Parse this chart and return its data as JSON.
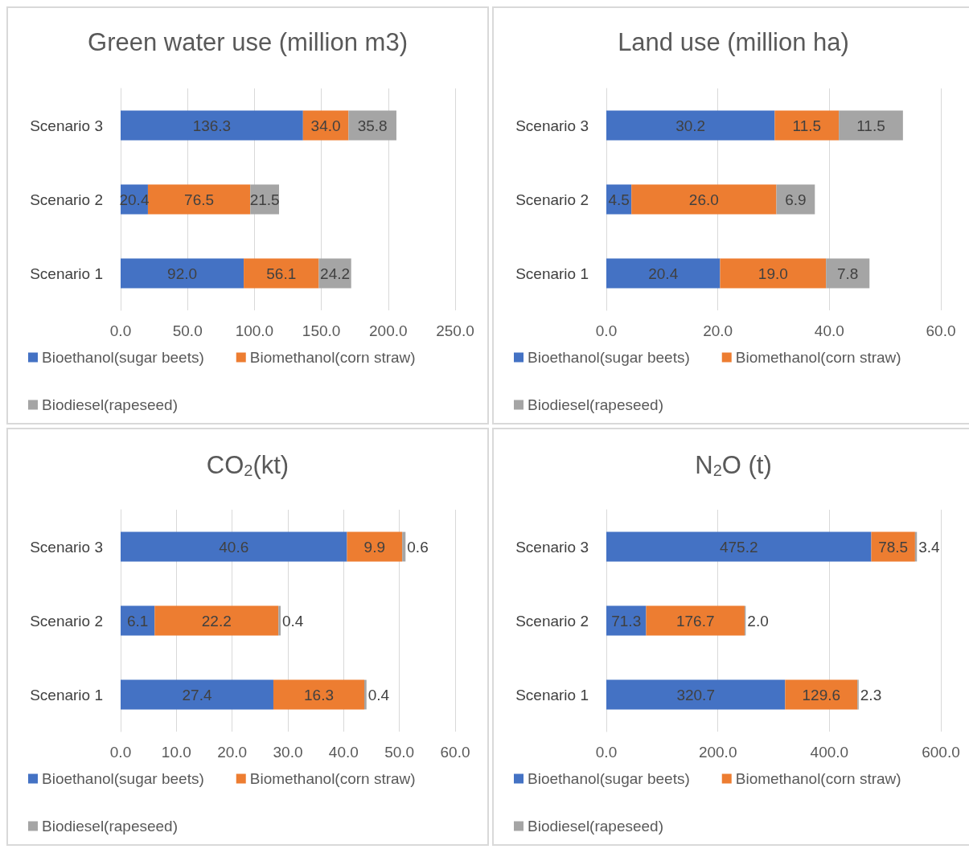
{
  "chart_data": [
    {
      "type": "bar",
      "orientation": "horizontal",
      "stacked": true,
      "title": "Green water use (million m3)",
      "categories": [
        "Scenario 3",
        "Scenario 2",
        "Scenario 1"
      ],
      "xlim": [
        0,
        250
      ],
      "xticks": [
        {
          "value": 0,
          "label": "0.0"
        },
        {
          "value": 50,
          "label": "50.0"
        },
        {
          "value": 100,
          "label": "100.0"
        },
        {
          "value": 150,
          "label": "150.0"
        },
        {
          "value": 200,
          "label": "200.0"
        },
        {
          "value": 250,
          "label": "250.0"
        }
      ],
      "grid": "x",
      "legend": "bottom",
      "series": [
        {
          "name": "Bioethanol(sugar beets)",
          "color": "#4472c4",
          "values": [
            136.3,
            20.4,
            92.0
          ],
          "value_labels": [
            "136.3",
            "20.4",
            "92.0"
          ]
        },
        {
          "name": "Biomethanol(corn straw)",
          "color": "#ed7d31",
          "values": [
            34.0,
            76.5,
            56.1
          ],
          "value_labels": [
            "34.0",
            "76.5",
            "56.1"
          ]
        },
        {
          "name": "Biodiesel(rapeseed)",
          "color": "#a5a5a5",
          "values": [
            35.8,
            21.5,
            24.2
          ],
          "value_labels": [
            "35.8",
            "21.5",
            "24.2"
          ]
        }
      ]
    },
    {
      "type": "bar",
      "orientation": "horizontal",
      "stacked": true,
      "title": "Land use (million ha)",
      "categories": [
        "Scenario 3",
        "Scenario 2",
        "Scenario 1"
      ],
      "xlim": [
        0,
        60
      ],
      "xticks": [
        {
          "value": 0,
          "label": "0.0"
        },
        {
          "value": 20,
          "label": "20.0"
        },
        {
          "value": 40,
          "label": "40.0"
        },
        {
          "value": 60,
          "label": "60.0"
        }
      ],
      "grid": "x",
      "legend": "bottom",
      "series": [
        {
          "name": "Bioethanol(sugar beets)",
          "color": "#4472c4",
          "values": [
            30.2,
            4.5,
            20.4
          ],
          "value_labels": [
            "30.2",
            "4.5",
            "20.4"
          ]
        },
        {
          "name": "Biomethanol(corn straw)",
          "color": "#ed7d31",
          "values": [
            11.5,
            26.0,
            19.0
          ],
          "value_labels": [
            "11.5",
            "26.0",
            "19.0"
          ]
        },
        {
          "name": "Biodiesel(rapeseed)",
          "color": "#a5a5a5",
          "values": [
            11.5,
            6.9,
            7.8
          ],
          "value_labels": [
            "11.5",
            "6.9",
            "7.8"
          ]
        }
      ]
    },
    {
      "type": "bar",
      "orientation": "horizontal",
      "stacked": true,
      "title": "CO$_{2}$(kt)",
      "categories": [
        "Scenario 3",
        "Scenario 2",
        "Scenario 1"
      ],
      "xlim": [
        0,
        60
      ],
      "xticks": [
        {
          "value": 0,
          "label": "0.0"
        },
        {
          "value": 10,
          "label": "10.0"
        },
        {
          "value": 20,
          "label": "20.0"
        },
        {
          "value": 30,
          "label": "30.0"
        },
        {
          "value": 40,
          "label": "40.0"
        },
        {
          "value": 50,
          "label": "50.0"
        },
        {
          "value": 60,
          "label": "60.0"
        }
      ],
      "grid": "x",
      "legend": "bottom",
      "series": [
        {
          "name": "Bioethanol(sugar beets)",
          "color": "#4472c4",
          "values": [
            40.6,
            6.1,
            27.4
          ],
          "value_labels": [
            "40.6",
            "6.1",
            "27.4"
          ]
        },
        {
          "name": "Biomethanol(corn straw)",
          "color": "#ed7d31",
          "values": [
            9.9,
            22.2,
            16.3
          ],
          "value_labels": [
            "9.9",
            "22.2",
            "16.3"
          ]
        },
        {
          "name": "Biodiesel(rapeseed)",
          "color": "#a5a5a5",
          "values": [
            0.6,
            0.4,
            0.4
          ],
          "value_labels": [
            "0.6",
            "0.4",
            "0.4"
          ]
        }
      ]
    },
    {
      "type": "bar",
      "orientation": "horizontal",
      "stacked": true,
      "title": "N$_{2}$O (t)",
      "categories": [
        "Scenario 3",
        "Scenario 2",
        "Scenario 1"
      ],
      "xlim": [
        0,
        600
      ],
      "xticks": [
        {
          "value": 0,
          "label": "0.0"
        },
        {
          "value": 200,
          "label": "200.0"
        },
        {
          "value": 400,
          "label": "400.0"
        },
        {
          "value": 600,
          "label": "600.0"
        }
      ],
      "grid": "x",
      "legend": "bottom",
      "series": [
        {
          "name": "Bioethanol(sugar beets)",
          "color": "#4472c4",
          "values": [
            475.2,
            71.3,
            320.7
          ],
          "value_labels": [
            "475.2",
            "71.3",
            "320.7"
          ]
        },
        {
          "name": "Biomethanol(corn straw)",
          "color": "#ed7d31",
          "values": [
            78.5,
            176.7,
            129.6
          ],
          "value_labels": [
            "78.5",
            "176.7",
            "129.6"
          ]
        },
        {
          "name": "Biodiesel(rapeseed)",
          "color": "#a5a5a5",
          "values": [
            3.4,
            2.0,
            2.3
          ],
          "value_labels": [
            "3.4",
            "2.0",
            "2.3"
          ]
        }
      ]
    }
  ]
}
